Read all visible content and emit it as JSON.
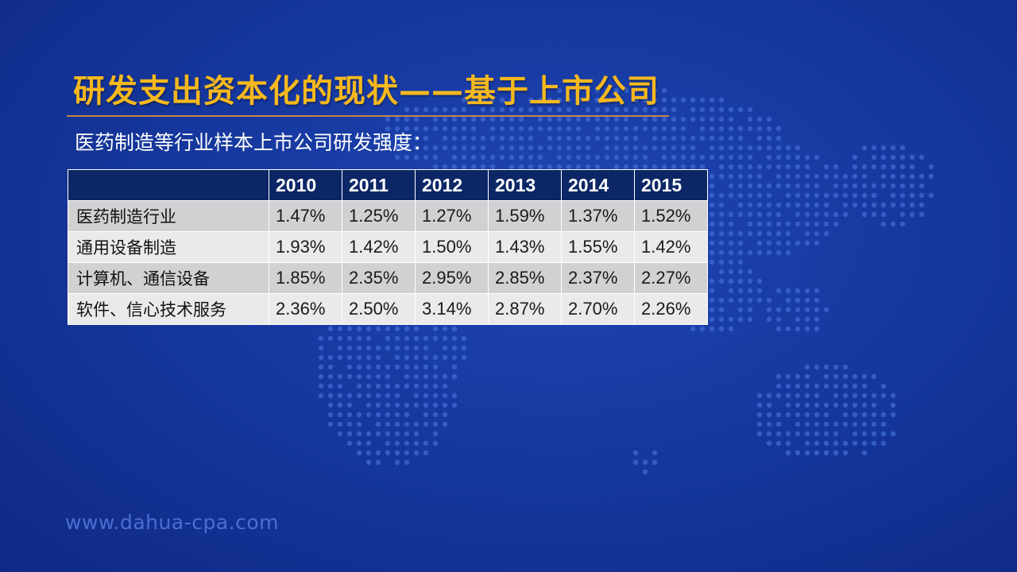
{
  "slide": {
    "title": "研发支出资本化的现状——基于上市公司",
    "subtitle": "医药制造等行业样本上市公司研发强度：",
    "website": "www.dahua-cpa.com"
  },
  "table": {
    "header": [
      "",
      "2010",
      "2011",
      "2012",
      "2013",
      "2014",
      "2015"
    ],
    "rows": [
      {
        "label": "医药制造行业",
        "values": [
          "1.47%",
          "1.25%",
          "1.27%",
          "1.59%",
          "1.37%",
          "1.52%"
        ]
      },
      {
        "label": "通用设备制造",
        "values": [
          "1.93%",
          "1.42%",
          "1.50%",
          "1.43%",
          "1.55%",
          "1.42%"
        ]
      },
      {
        "label": "计算机、通信设备",
        "values": [
          "1.85%",
          "2.35%",
          "2.95%",
          "2.85%",
          "2.37%",
          "2.27%"
        ]
      },
      {
        "label": "软件、信心技术服务",
        "values": [
          "2.36%",
          "2.50%",
          "3.14%",
          "2.87%",
          "2.70%",
          "2.26%"
        ]
      }
    ]
  },
  "colors": {
    "background": "#16389f",
    "title": "#f6b81e",
    "header_fill": "#0d2766",
    "row_dark": "#d1d1d3",
    "row_light": "#eaeaec"
  }
}
